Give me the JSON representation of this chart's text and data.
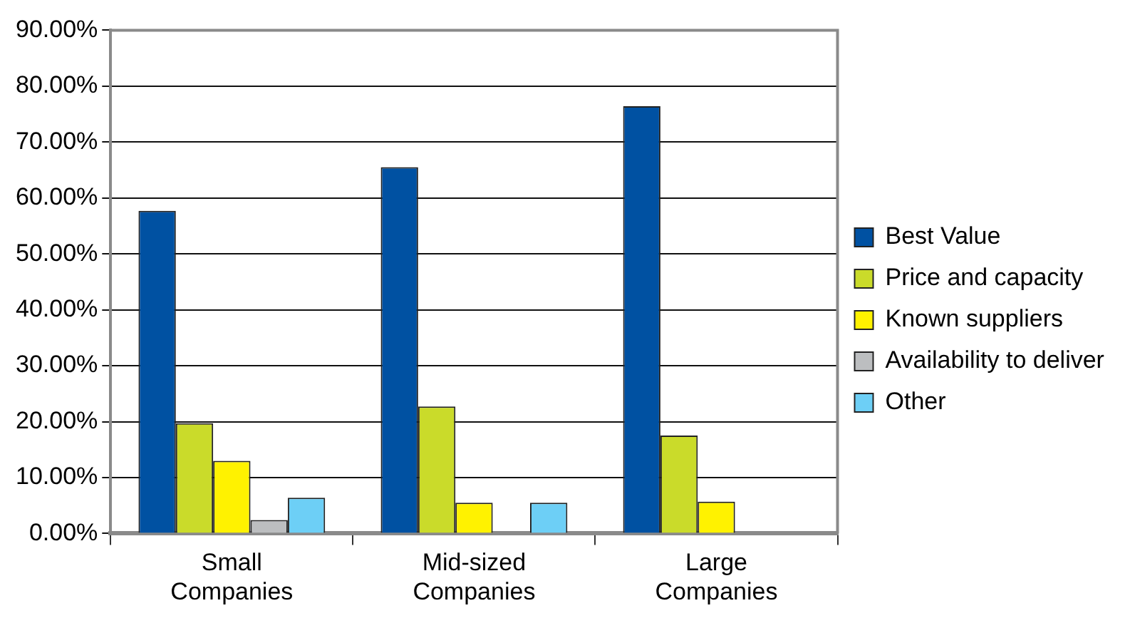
{
  "chart_data": {
    "type": "bar",
    "categories": [
      "Small Companies",
      "Mid-sized Companies",
      "Large Companies"
    ],
    "series": [
      {
        "name": "Best Value",
        "color": "#0051a2",
        "values": [
          57.7,
          65.5,
          76.4
        ]
      },
      {
        "name": "Price and capacity",
        "color": "#cadb2a",
        "values": [
          19.7,
          22.7,
          17.5
        ]
      },
      {
        "name": "Known suppliers",
        "color": "#fff200",
        "values": [
          13.0,
          5.5,
          5.7
        ]
      },
      {
        "name": "Availability to deliver",
        "color": "#bcbec0",
        "values": [
          2.4,
          0,
          0
        ]
      },
      {
        "name": "Other",
        "color": "#6dcff6",
        "values": [
          6.4,
          5.5,
          0
        ]
      }
    ],
    "ylim": [
      0,
      90
    ],
    "yticks": [
      {
        "value": 0,
        "label": "0.00%"
      },
      {
        "value": 10,
        "label": "10.00%"
      },
      {
        "value": 20,
        "label": "20.00%"
      },
      {
        "value": 30,
        "label": "30.00%"
      },
      {
        "value": 40,
        "label": "40.00%"
      },
      {
        "value": 50,
        "label": "50.00%"
      },
      {
        "value": 60,
        "label": "60.00%"
      },
      {
        "value": 70,
        "label": "70.00%"
      },
      {
        "value": 80,
        "label": "80.00%"
      },
      {
        "value": 90,
        "label": "90.00%"
      }
    ],
    "grid": "y",
    "legend": "right"
  }
}
